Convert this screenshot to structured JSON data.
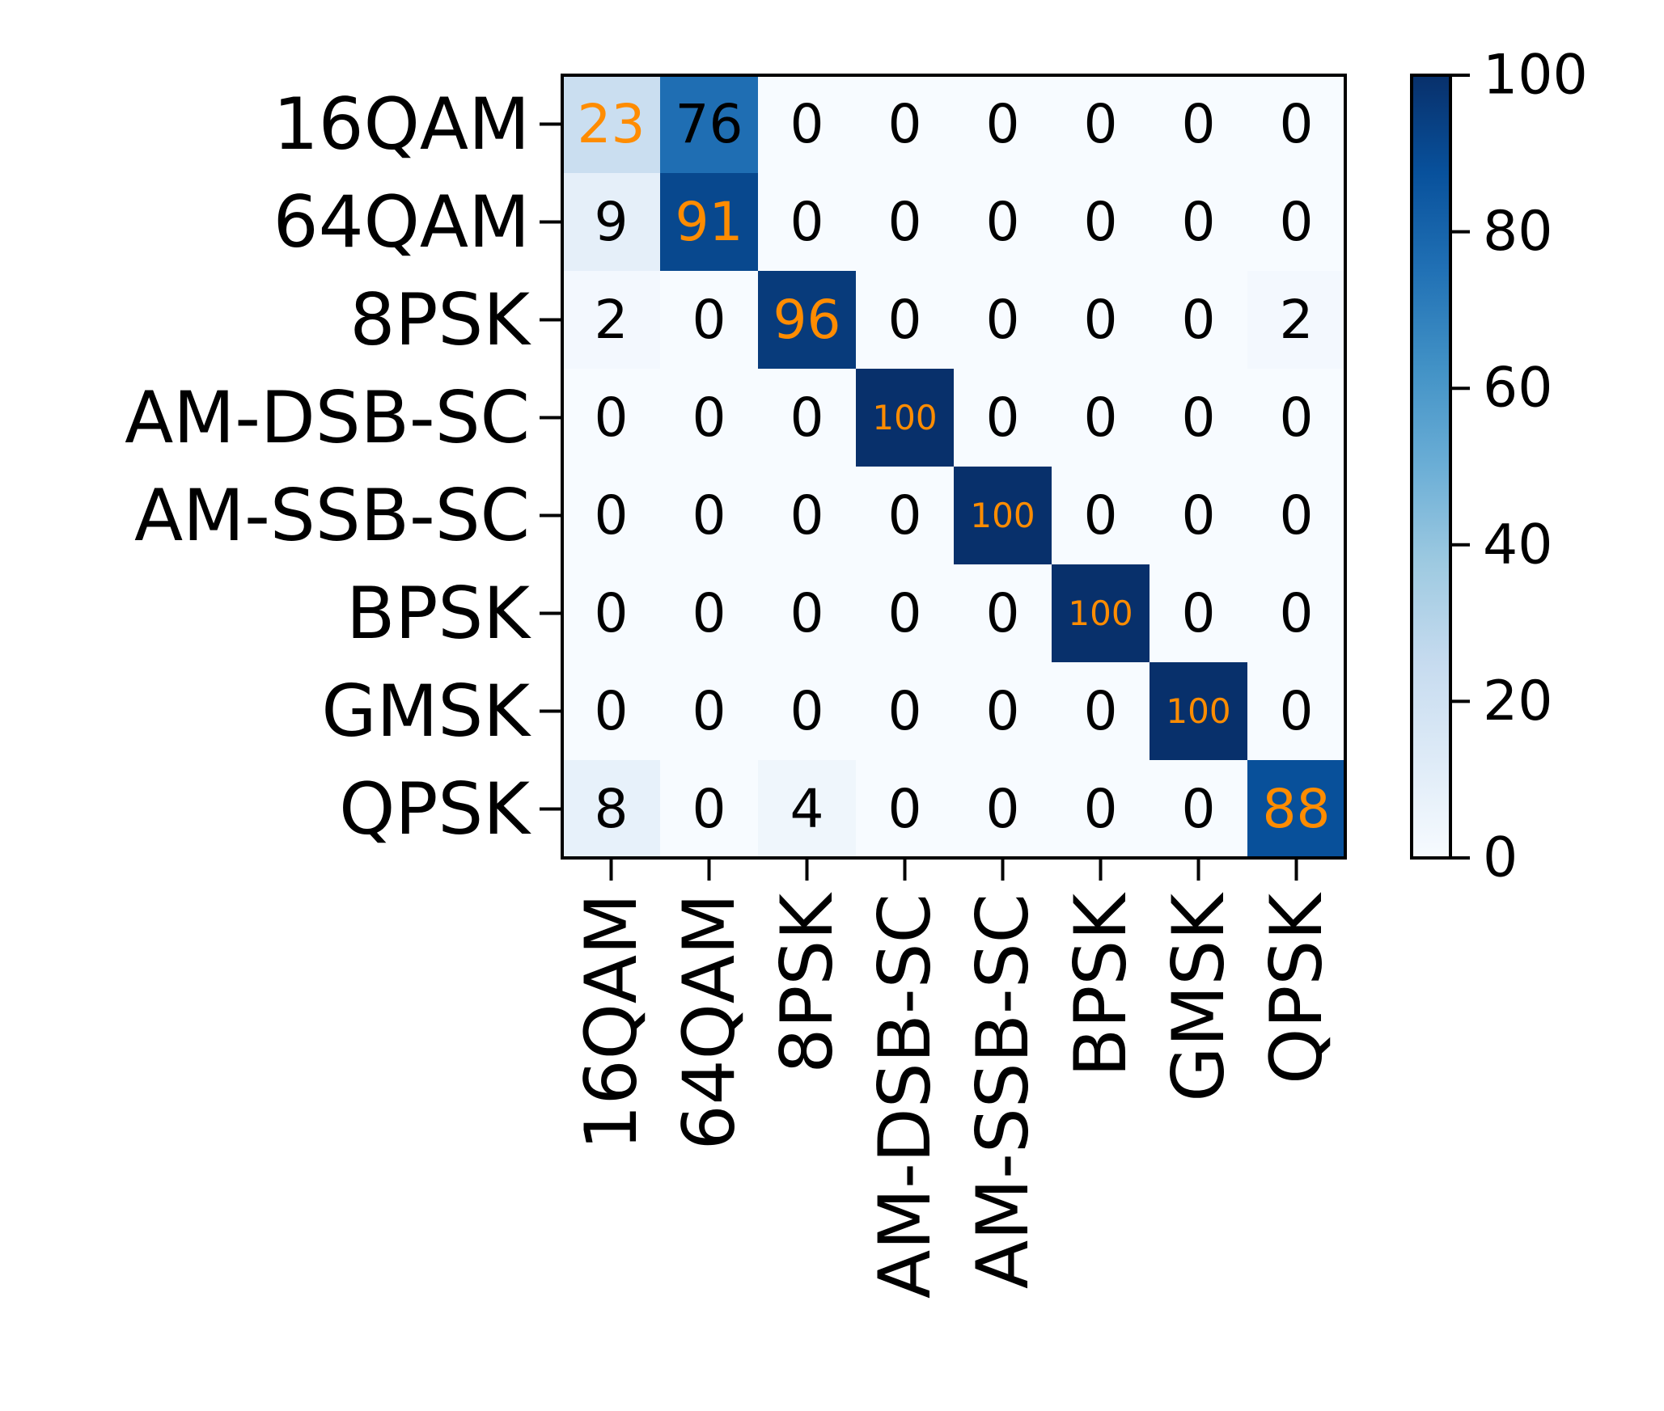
{
  "chart_data": {
    "type": "heatmap",
    "title": "",
    "xlabel": "",
    "ylabel": "",
    "colormap": "Blues",
    "vmin": 0,
    "vmax": 100,
    "row_labels": [
      "16QAM",
      "64QAM",
      "8PSK",
      "AM-DSB-SC",
      "AM-SSB-SC",
      "BPSK",
      "GMSK",
      "QPSK"
    ],
    "col_labels": [
      "16QAM",
      "64QAM",
      "8PSK",
      "AM-DSB-SC",
      "AM-SSB-SC",
      "BPSK",
      "GMSK",
      "QPSK"
    ],
    "values": [
      [
        23,
        76,
        0,
        0,
        0,
        0,
        0,
        0
      ],
      [
        9,
        91,
        0,
        0,
        0,
        0,
        0,
        0
      ],
      [
        2,
        0,
        96,
        0,
        0,
        0,
        0,
        2
      ],
      [
        0,
        0,
        0,
        100,
        0,
        0,
        0,
        0
      ],
      [
        0,
        0,
        0,
        0,
        100,
        0,
        0,
        0
      ],
      [
        0,
        0,
        0,
        0,
        0,
        100,
        0,
        0
      ],
      [
        0,
        0,
        0,
        0,
        0,
        0,
        100,
        0
      ],
      [
        8,
        0,
        4,
        0,
        0,
        0,
        0,
        88
      ]
    ],
    "colorbar_ticks": [
      0,
      20,
      40,
      60,
      80,
      100
    ],
    "diagonal_label_color": "#ff8c00",
    "default_label_color": "#000000",
    "grid": false,
    "legend": "none"
  }
}
